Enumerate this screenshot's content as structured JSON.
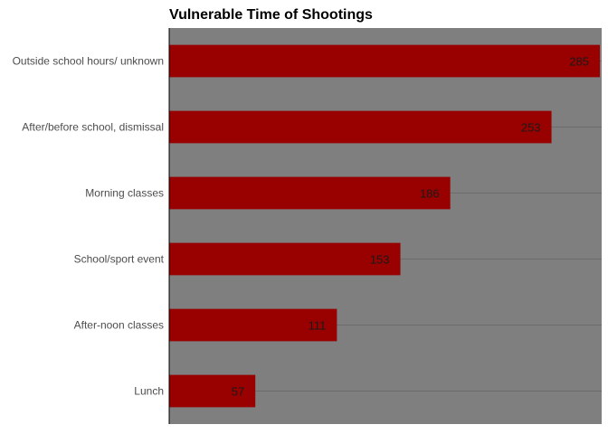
{
  "chart_data": {
    "type": "bar",
    "orientation": "horizontal",
    "title": "Vulnerable Time of Shootings",
    "xlabel": "",
    "ylabel": "",
    "categories": [
      "Outside school hours/ unknown",
      "After/before school, dismissal",
      "Morning classes",
      "School/sport event",
      "After-noon classes",
      "Lunch"
    ],
    "values": [
      285,
      253,
      186,
      153,
      111,
      57
    ],
    "xlim": [
      0,
      285
    ],
    "grid": true,
    "legend": "none",
    "colors": {
      "bar": "#990000",
      "panel": "#7f7f7f",
      "gridline": "#6b6b6b",
      "axis": "#000000"
    }
  }
}
